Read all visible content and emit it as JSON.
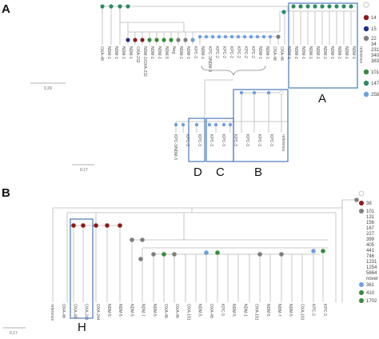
{
  "colors": {
    "line": "#b9b9b9",
    "box": "#4a7ab8",
    "teal": "#2e8b62",
    "green": "#3a8a3a",
    "gray": "#7f7f7f",
    "blue": "#6e9fe0",
    "darkred": "#8b1a1a",
    "navy": "#1f2f8f",
    "lightgreen": "#7cc444"
  },
  "panel_a": {
    "letter": "A",
    "scale": "0.29",
    "sub_scale": "0.17",
    "top_labels": [
      "OXA-48",
      "NDM-1",
      "NDM-1",
      "NDM-1",
      "NDM-1",
      "OXA-232",
      "NDM-1/OXA-232",
      "NDM-1",
      "NDM-1",
      "NDM-5",
      "Neg",
      "NDM-1",
      "NDM-1",
      "KPC-3",
      "NDM-1",
      "KPC-3/NDM-3",
      "KPC-2",
      "KPC-2",
      "KPC-2",
      "KPC-2",
      "KPC-2",
      "KPC-2",
      "NDM-1",
      "NDM-1",
      "OXA-48",
      "OXA-48",
      "NDM-1",
      "NDM-1",
      "NDM-1",
      "NDM-1",
      "NDM-1",
      "NDM-1",
      "NDM-1",
      "NDM-1",
      "NDM-1",
      "NDM-1",
      "reference"
    ],
    "sub_labels": [
      "KPC-3/NDM-3",
      "KPC-3",
      "KPC-3",
      "KPC-3",
      "KPC-3",
      "KPC-3",
      "KPC-3",
      "KPC-3",
      "KPC-3",
      "reference"
    ],
    "box_letters": [
      "A",
      "B",
      "C",
      "D"
    ],
    "legend": [
      {
        "color": "#ffffff",
        "text": ""
      },
      {
        "color": "#8b1a1a",
        "text": "14"
      },
      {
        "color": "#1f2f8f",
        "text": "15"
      },
      {
        "color": "#7f7f7f",
        "text": "22"
      },
      {
        "color": "#7f7f7f",
        "text": "34"
      },
      {
        "color": "#7f7f7f",
        "text": "231"
      },
      {
        "color": "#7f7f7f",
        "text": "340"
      },
      {
        "color": "#7f7f7f",
        "text": "383"
      },
      {
        "color": "#3a8a3a",
        "text": "101"
      },
      {
        "color": "#2e8b62",
        "text": "147"
      },
      {
        "color": "#6e9fe0",
        "text": "258"
      }
    ]
  },
  "panel_b": {
    "letter": "B",
    "scale": "0.17",
    "labels": [
      "reference",
      "OXA-48",
      "OXA-48",
      "OXA-244",
      "OXA-244",
      "NDM-5",
      "NDM-5",
      "NDM-5",
      "NDM-7",
      "NDM-5",
      "OXA-48",
      "OXA-48",
      "OXA-181",
      "NDM-5",
      "OXA-48",
      "KPC-3",
      "NDM-5",
      "NDM-1",
      "OXA-181",
      "NDM-5",
      "NDM-7",
      "NDM-5",
      "OXA-181",
      "KPC-3",
      "KPC-3"
    ],
    "box_letter": "H",
    "legend": [
      {
        "color": "#ffffff",
        "text": ""
      },
      {
        "color": "#8b1a1a",
        "text": "38"
      },
      {
        "color": "#7f7f7f",
        "text": "101"
      },
      {
        "color": "#7f7f7f",
        "text": "131"
      },
      {
        "color": "#7f7f7f",
        "text": "156"
      },
      {
        "color": "#7f7f7f",
        "text": "167"
      },
      {
        "color": "#7f7f7f",
        "text": "227"
      },
      {
        "color": "#7f7f7f",
        "text": "399"
      },
      {
        "color": "#7f7f7f",
        "text": "405"
      },
      {
        "color": "#7f7f7f",
        "text": "441"
      },
      {
        "color": "#7f7f7f",
        "text": "746"
      },
      {
        "color": "#7f7f7f",
        "text": "1231"
      },
      {
        "color": "#7f7f7f",
        "text": "1254"
      },
      {
        "color": "#7f7f7f",
        "text": "5664"
      },
      {
        "color": "#7f7f7f",
        "text": "novel"
      },
      {
        "color": "#6e9fe0",
        "text": "361"
      },
      {
        "color": "#3a8a3a",
        "text": "410"
      },
      {
        "color": "#3a8a3a",
        "text": "1702"
      }
    ]
  }
}
